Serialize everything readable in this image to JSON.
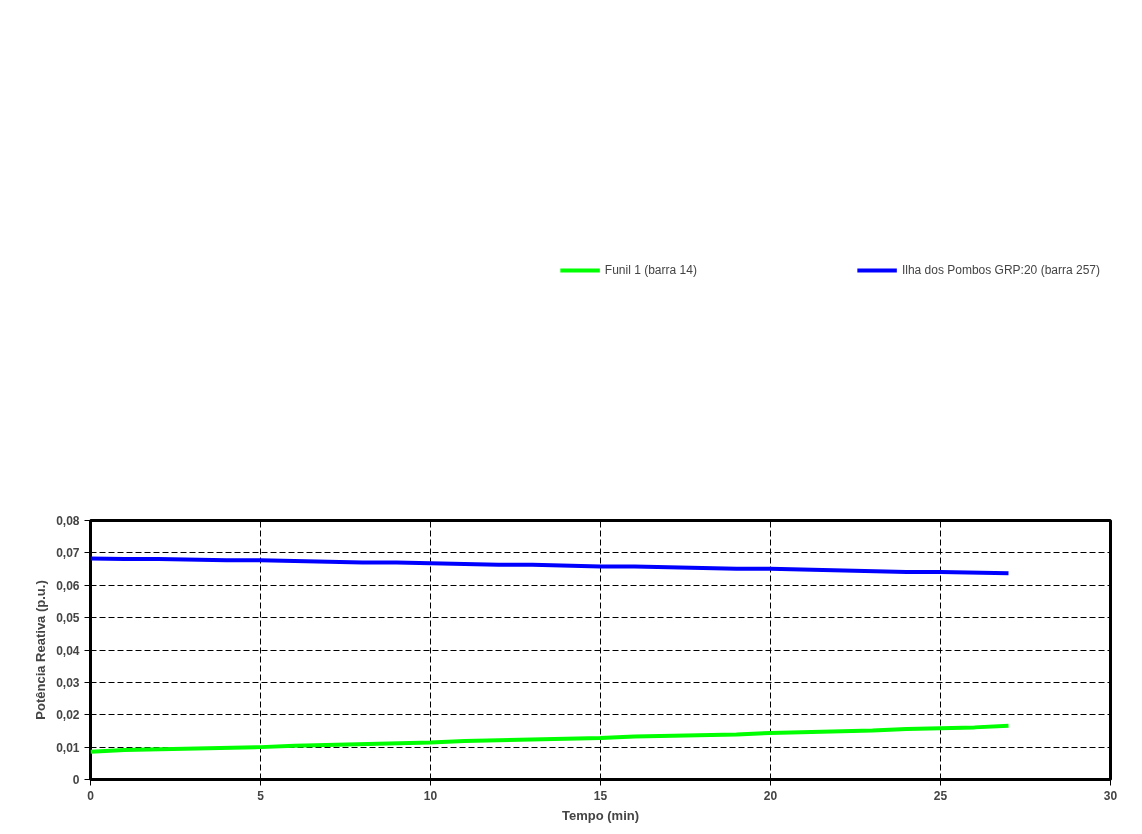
{
  "chart_data": {
    "type": "line",
    "xlabel": "Tempo (min)",
    "ylabel": "Potência Reativa (p.u.)",
    "xlim": [
      0,
      30
    ],
    "xticks": [
      0,
      5,
      10,
      15,
      20,
      25,
      30
    ],
    "ylim": [
      0,
      0.08
    ],
    "yticks": [
      0,
      {
        "value": 0.01,
        "label": "0,01"
      },
      {
        "value": 0.02,
        "label": "0,02"
      },
      {
        "value": 0.03,
        "label": "0,03"
      },
      {
        "value": 0.04,
        "label": "0,04"
      },
      {
        "value": 0.05,
        "label": "0,05"
      },
      {
        "value": 0.06,
        "label": "0,06"
      },
      {
        "value": 0.07,
        "label": "0,07"
      },
      {
        "value": 0.08,
        "label": "0,08"
      }
    ],
    "grid": true,
    "legend": "top",
    "line_style": "solid",
    "marker": "none",
    "series": [
      {
        "name": "Funil 1 (barra 14)",
        "color": "#00ff00",
        "x": [
          0,
          1,
          5,
          6,
          10,
          11,
          15,
          16,
          19,
          20,
          23,
          24,
          26,
          27
        ],
        "values": [
          0.0086,
          0.0091,
          0.01,
          0.0104,
          0.0114,
          0.0119,
          0.0128,
          0.0133,
          0.0139,
          0.0144,
          0.0151,
          0.0156,
          0.0161,
          0.0166
        ]
      },
      {
        "name": "Ilha dos Pombos GRP:20 (barra 257)",
        "color": "#0000ff",
        "x": [
          0,
          1,
          2,
          4,
          5,
          8,
          9,
          12,
          13,
          15,
          16,
          19,
          20,
          24,
          25,
          27
        ],
        "values": [
          0.0683,
          0.0681,
          0.0681,
          0.0677,
          0.0677,
          0.067,
          0.067,
          0.0663,
          0.0663,
          0.0658,
          0.0658,
          0.0651,
          0.0651,
          0.0641,
          0.0641,
          0.0637
        ]
      }
    ]
  }
}
